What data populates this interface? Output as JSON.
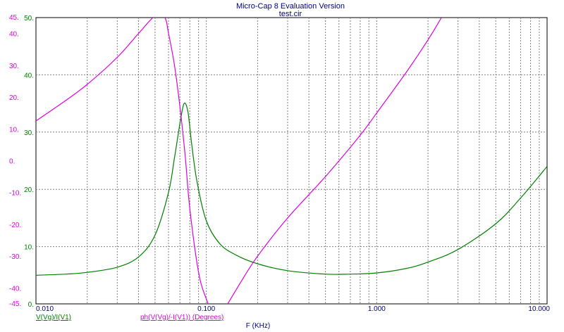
{
  "window": {
    "title": "Micro-Cap 8 Evaluation Version",
    "subtitle": "test.cir"
  },
  "chart_data": {
    "type": "line",
    "x_axis": {
      "label": "F (KHz)",
      "scale": "log",
      "range": [
        0.01,
        10
      ],
      "ticks": [
        {
          "value": 0.01,
          "label": "0.010"
        },
        {
          "value": 0.1,
          "label": "0.100"
        },
        {
          "value": 1,
          "label": "1.000"
        },
        {
          "value": 10,
          "label": "10.000"
        }
      ]
    },
    "y_axis_left": {
      "range": [
        0,
        50
      ],
      "color": "#008000",
      "ticks": [
        {
          "value": 0,
          "label": "0."
        },
        {
          "value": 10,
          "label": "10."
        },
        {
          "value": 20,
          "label": "20."
        },
        {
          "value": 30,
          "label": "30."
        },
        {
          "value": 40,
          "label": "40."
        },
        {
          "value": 50,
          "label": "50."
        }
      ]
    },
    "y_axis_right": {
      "range": [
        -45,
        45
      ],
      "color": "#e000e0",
      "ticks": [
        {
          "value": -45,
          "label": "-45."
        },
        {
          "value": -40,
          "label": "-40."
        },
        {
          "value": -30,
          "label": "-30."
        },
        {
          "value": -20,
          "label": "-20."
        },
        {
          "value": -10,
          "label": "-10."
        },
        {
          "value": 0,
          "label": "0."
        },
        {
          "value": 10,
          "label": "10."
        },
        {
          "value": 20,
          "label": "20."
        },
        {
          "value": 30,
          "label": "30."
        },
        {
          "value": 40,
          "label": "40."
        },
        {
          "value": 45,
          "label": "45."
        }
      ]
    },
    "grid": true,
    "series": [
      {
        "name": "V(Vg)/I(V1)",
        "color": "#008000",
        "axis": "left",
        "x": [
          0.01,
          0.015,
          0.02,
          0.03,
          0.04,
          0.05,
          0.06,
          0.065,
          0.07,
          0.074,
          0.078,
          0.082,
          0.088,
          0.1,
          0.12,
          0.15,
          0.2,
          0.3,
          0.5,
          0.7,
          1.0,
          1.5,
          2.0,
          3.0,
          5.0,
          7.0,
          10.0
        ],
        "values": [
          5.0,
          5.2,
          5.5,
          6.4,
          8.2,
          12.0,
          19.5,
          25.5,
          31.5,
          35.0,
          33.5,
          28.0,
          21.5,
          14.5,
          10.5,
          8.5,
          7.0,
          5.8,
          5.2,
          5.2,
          5.4,
          6.2,
          7.3,
          9.5,
          14.0,
          18.5,
          24.0
        ]
      },
      {
        "name": "ph(V(Vg)/-I(V1)) (Degrees)",
        "color": "#e000e0",
        "axis": "right",
        "x": [
          0.01,
          0.015,
          0.02,
          0.03,
          0.04,
          0.05,
          0.057,
          0.06,
          0.065,
          0.07,
          0.075,
          0.08,
          0.09,
          0.1,
          0.11,
          0.12,
          0.13,
          0.16,
          0.2,
          0.3,
          0.5,
          0.8,
          1.0,
          1.5,
          2.0,
          2.4
        ],
        "values": [
          12.5,
          19.0,
          24.0,
          32.5,
          40.0,
          45.5,
          45.0,
          40.0,
          30.0,
          17.0,
          2.0,
          -15.0,
          -35.0,
          -43.5,
          -48.0,
          -48.5,
          -46.0,
          -38.0,
          -30.0,
          -18.0,
          -5.0,
          8.0,
          15.0,
          28.0,
          38.0,
          45.0
        ]
      }
    ]
  }
}
